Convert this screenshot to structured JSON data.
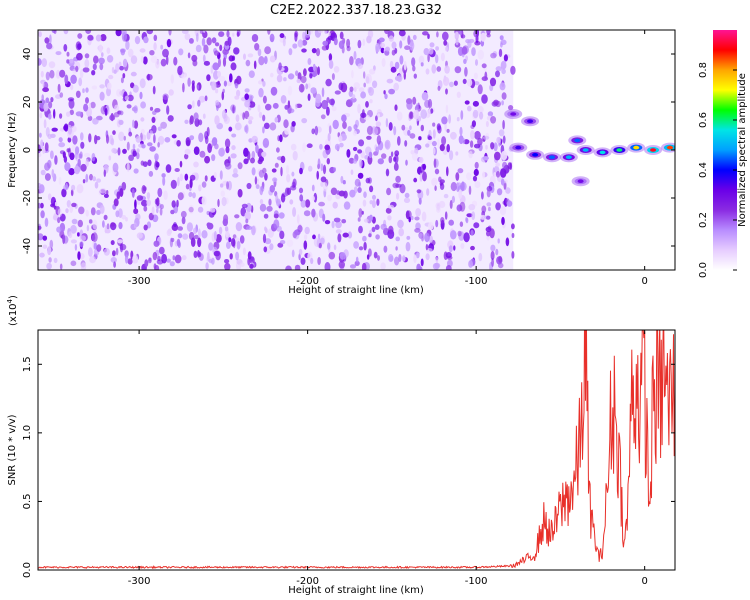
{
  "figure": {
    "title": "C2E2.2022.337.18.23.G32"
  },
  "chart_data": [
    {
      "type": "heatmap",
      "title": "C2E2.2022.337.18.23.G32",
      "xlabel": "Height of straight line (km)",
      "ylabel": "Frequency (Hz)",
      "xlim": [
        -360,
        18
      ],
      "ylim": [
        -50,
        50
      ],
      "x_ticks": [
        -300,
        -200,
        -100,
        0
      ],
      "y_ticks": [
        -40,
        -20,
        0,
        20,
        40
      ],
      "x_tick_labels": [
        "-300",
        "-200",
        "-100",
        "0"
      ],
      "y_tick_labels": [
        "-40",
        "-20",
        "0",
        "20",
        "40"
      ],
      "colorbar": {
        "label": "Normalized spectral amplitude",
        "range": [
          0,
          0.96
        ],
        "ticks": [
          0.0,
          0.2,
          0.4,
          0.6,
          0.8
        ],
        "tick_labels": [
          "0.0",
          "0.2",
          "0.4",
          "0.6",
          "0.8"
        ],
        "colormap": [
          "#ffffff",
          "#e6ccff",
          "#b88cff",
          "#8a2be2",
          "#6a00e8",
          "#0000ff",
          "#00a0ff",
          "#00e5e5",
          "#00ff00",
          "#ffff00",
          "#ffa500",
          "#ff0000",
          "#ff1493"
        ]
      },
      "noise_region": {
        "x": [
          -360,
          -78
        ],
        "value_range": [
          0.0,
          0.1
        ]
      },
      "signal_track": [
        {
          "x": -78,
          "f": 15,
          "amp": 0.3
        },
        {
          "x": -68,
          "f": 12,
          "amp": 0.35
        },
        {
          "x": -75,
          "f": 1,
          "amp": 0.35
        },
        {
          "x": -65,
          "f": -2,
          "amp": 0.4
        },
        {
          "x": -55,
          "f": -3,
          "amp": 0.45
        },
        {
          "x": -45,
          "f": -3,
          "amp": 0.5
        },
        {
          "x": -40,
          "f": 4,
          "amp": 0.45
        },
        {
          "x": -35,
          "f": 0,
          "amp": 0.5
        },
        {
          "x": -38,
          "f": -13,
          "amp": 0.3
        },
        {
          "x": -25,
          "f": -1,
          "amp": 0.55
        },
        {
          "x": -15,
          "f": 0,
          "amp": 0.6
        },
        {
          "x": -5,
          "f": 1,
          "amp": 0.75
        },
        {
          "x": 5,
          "f": 0,
          "amp": 0.9
        },
        {
          "x": 15,
          "f": 1,
          "amp": 0.85
        }
      ]
    },
    {
      "type": "line",
      "xlabel": "Height of straight line (km)",
      "ylabel": "SNR (10 * v/v)",
      "y_multiplier_label": "(x10",
      "y_multiplier_exp": "4",
      "xlim": [
        -360,
        18
      ],
      "ylim": [
        0,
        1.75
      ],
      "x_ticks": [
        -300,
        -200,
        -100,
        0
      ],
      "y_ticks": [
        0.0,
        0.5,
        1.0,
        1.5
      ],
      "x_tick_labels": [
        "-300",
        "-200",
        "-100",
        "0"
      ],
      "y_tick_labels": [
        "0.0",
        "0.5",
        "1.0",
        "1.5"
      ],
      "series_color": "#e8302a",
      "series": [
        {
          "x": [
            -360,
            -300,
            -200,
            -100,
            -78,
            -70,
            -65,
            -60,
            -55,
            -50,
            -45,
            -42,
            -38,
            -35,
            -33,
            -30,
            -27,
            -25,
            -22,
            -20,
            -18,
            -15,
            -12,
            -10,
            -8,
            -5,
            -3,
            0,
            3,
            5,
            8,
            10,
            12,
            14,
            16,
            18
          ],
          "y": [
            0.02,
            0.02,
            0.02,
            0.02,
            0.03,
            0.08,
            0.12,
            0.35,
            0.25,
            0.45,
            0.55,
            0.6,
            0.95,
            1.75,
            0.5,
            0.25,
            0.08,
            0.15,
            0.6,
            1.1,
            1.2,
            0.8,
            0.15,
            0.45,
            1.2,
            1.4,
            1.25,
            1.35,
            0.4,
            1.25,
            1.3,
            1.3,
            1.55,
            1.1,
            1.35,
            1.2
          ]
        }
      ]
    }
  ]
}
